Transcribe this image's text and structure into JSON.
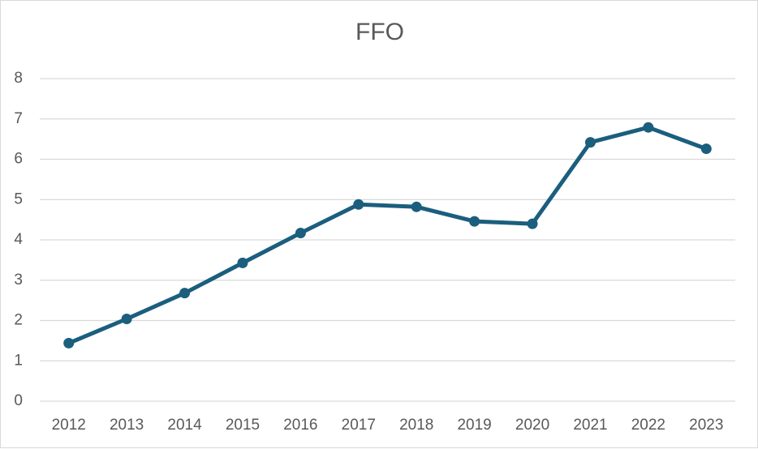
{
  "chart_data": {
    "type": "line",
    "title": "FFO",
    "categories": [
      "2012",
      "2013",
      "2014",
      "2015",
      "2016",
      "2017",
      "2018",
      "2019",
      "2020",
      "2021",
      "2022",
      "2023"
    ],
    "series": [
      {
        "values": [
          1.44,
          2.04,
          2.68,
          3.43,
          4.17,
          4.88,
          4.82,
          4.46,
          4.4,
          6.42,
          6.79,
          6.26
        ],
        "color": "#1b5e7e"
      }
    ],
    "ylim": [
      0,
      8
    ],
    "yticks": [
      "0",
      "1",
      "2",
      "3",
      "4",
      "5",
      "6",
      "7",
      "8"
    ],
    "grid": true,
    "legend": "none",
    "gridline_color": "#d9d9d9"
  }
}
